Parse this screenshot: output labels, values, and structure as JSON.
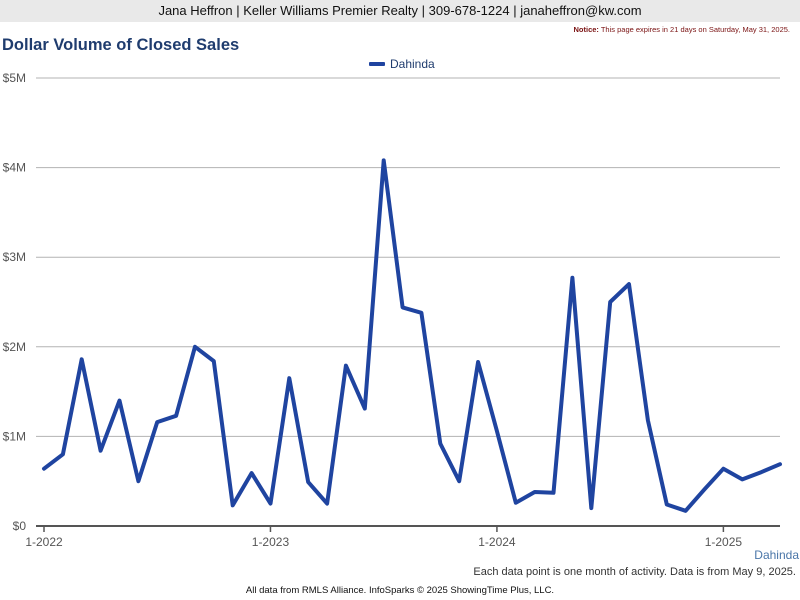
{
  "header": {
    "contact": "Jana Heffron | Keller Williams Premier Realty | 309-678-1224 | janaheffron@kw.com"
  },
  "notice": {
    "label": "Notice:",
    "text": " This page expires in 21 days on Saturday, May 31, 2025."
  },
  "footer": {
    "note": "Each data point is one month of activity. Data is from May 9, 2025.",
    "credit": "All data from RMLS Alliance. InfoSparks © 2025 ShowingTime Plus, LLC."
  },
  "chart_data": {
    "type": "line",
    "title": "Dollar Volume of Closed Sales",
    "ylim": [
      0,
      5000000
    ],
    "y_ticks": [
      {
        "value": 0,
        "label": "$0"
      },
      {
        "value": 1000000,
        "label": "$1M"
      },
      {
        "value": 2000000,
        "label": "$2M"
      },
      {
        "value": 3000000,
        "label": "$3M"
      },
      {
        "value": 4000000,
        "label": "$4M"
      },
      {
        "value": 5000000,
        "label": "$5M"
      }
    ],
    "x_ticks": [
      "1-2022",
      "1-2023",
      "1-2024",
      "1-2025"
    ],
    "x": [
      "2022-01",
      "2022-02",
      "2022-03",
      "2022-04",
      "2022-05",
      "2022-06",
      "2022-07",
      "2022-08",
      "2022-09",
      "2022-10",
      "2022-11",
      "2022-12",
      "2023-01",
      "2023-02",
      "2023-03",
      "2023-04",
      "2023-05",
      "2023-06",
      "2023-07",
      "2023-08",
      "2023-09",
      "2023-10",
      "2023-11",
      "2023-12",
      "2024-01",
      "2024-02",
      "2024-03",
      "2024-04",
      "2024-05",
      "2024-06",
      "2024-07",
      "2024-08",
      "2024-09",
      "2024-10",
      "2024-11",
      "2024-12",
      "2025-01",
      "2025-02",
      "2025-03",
      "2025-04"
    ],
    "grid": true,
    "legend_position": "top-center",
    "series": [
      {
        "name": "Dahinda",
        "color": "#1f44a0",
        "values": [
          640000,
          800000,
          1860000,
          840000,
          1400000,
          500000,
          1160000,
          1230000,
          2000000,
          1840000,
          230000,
          590000,
          250000,
          1650000,
          490000,
          250000,
          1790000,
          1310000,
          4080000,
          2440000,
          2380000,
          920000,
          500000,
          1830000,
          1060000,
          260000,
          380000,
          370000,
          2770000,
          200000,
          2500000,
          2700000,
          1180000,
          240000,
          170000,
          410000,
          640000,
          520000,
          600000,
          690000
        ]
      }
    ]
  }
}
